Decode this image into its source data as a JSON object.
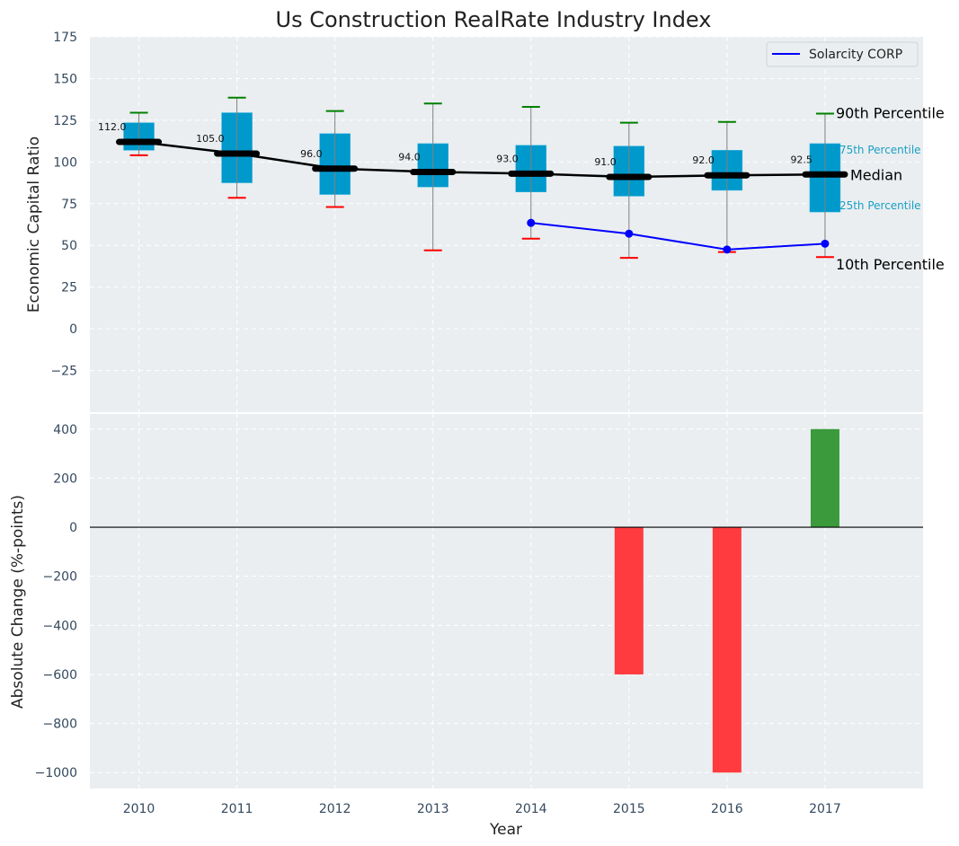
{
  "chart_data": [
    {
      "type": "box",
      "title": "Us Construction RealRate Industry Index",
      "xlabel": "",
      "ylabel": "Economic Capital Ratio",
      "ylim": [
        -50,
        175
      ],
      "yticks": [
        -25,
        0,
        25,
        50,
        75,
        100,
        125,
        150,
        175
      ],
      "ytick_labels": [
        "−25",
        "0",
        "25",
        "50",
        "75",
        "100",
        "125",
        "150",
        "175"
      ],
      "xlim": [
        2009.5,
        2018
      ],
      "grid": true,
      "categories": [
        "2010",
        "2011",
        "2012",
        "2013",
        "2014",
        "2015",
        "2016",
        "2017"
      ],
      "p10": [
        104,
        78.5,
        73,
        47,
        54,
        42.5,
        46,
        43
      ],
      "p25": [
        107,
        87.5,
        80.5,
        85,
        82,
        79.5,
        83,
        70
      ],
      "median": [
        112.0,
        105.0,
        96.0,
        94.0,
        93.0,
        91.0,
        92.0,
        92.5
      ],
      "median_labels": [
        "112.0",
        "105.0",
        "96.0",
        "94.0",
        "93.0",
        "91.0",
        "92.0",
        "92.5"
      ],
      "p75": [
        123.5,
        129.5,
        117,
        111,
        110,
        109.5,
        107,
        111
      ],
      "p90": [
        129.5,
        138.5,
        130.5,
        135,
        133,
        123.5,
        124,
        129
      ],
      "series": [
        {
          "name": "Solarcity CORP",
          "x": [
            "2014",
            "2015",
            "2016",
            "2017"
          ],
          "values": [
            63.5,
            57,
            47.5,
            51
          ],
          "color": "#0000ff"
        }
      ],
      "legend": {
        "position": "top-right",
        "entries": [
          "Solarcity CORP"
        ]
      },
      "annotations": {
        "p90": "90th Percentile",
        "p75": "75th Percentile",
        "median": "Median",
        "p25": "25th Percentile",
        "p10": "10th Percentile"
      },
      "colors": {
        "box": "#0099cc",
        "median": "#000000",
        "p90_cap": "#008000",
        "p10_cap": "#ff0000",
        "whisker": "#808080",
        "pct_label": "#1a9fc4",
        "background": "#eaeef0"
      }
    },
    {
      "type": "bar",
      "title": "",
      "xlabel": "Year",
      "ylabel": "Absolute Change (%-points)",
      "ylim": [
        -1065,
        465
      ],
      "yticks": [
        -1000,
        -800,
        -600,
        -400,
        -200,
        0,
        200,
        400
      ],
      "ytick_labels": [
        "−1000",
        "−800",
        "−600",
        "−400",
        "−200",
        "0",
        "200",
        "400"
      ],
      "xlim": [
        2009.5,
        2018
      ],
      "grid": true,
      "categories": [
        "2010",
        "2011",
        "2012",
        "2013",
        "2014",
        "2015",
        "2016",
        "2017"
      ],
      "values": [
        null,
        null,
        null,
        null,
        null,
        -600,
        -1000,
        400
      ],
      "colors": {
        "positive": "#3a9a3c",
        "negative": "#ff3b3f",
        "zero_line": "#000000"
      }
    }
  ]
}
